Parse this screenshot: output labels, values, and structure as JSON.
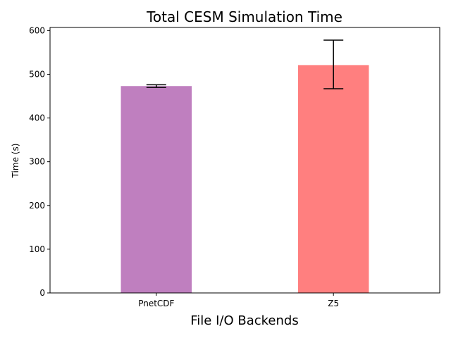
{
  "chart_data": {
    "type": "bar",
    "title": "Total CESM Simulation Time",
    "xlabel": "File I/O Backends",
    "ylabel": "Time (s)",
    "categories": [
      "PnetCDF",
      "Z5"
    ],
    "values": [
      473,
      521
    ],
    "error_low": [
      470,
      467
    ],
    "error_high": [
      476,
      578
    ],
    "colors": [
      "#bf7fbf",
      "#ff7f7f"
    ],
    "ylim": [
      0,
      607
    ],
    "yticks": [
      0,
      100,
      200,
      300,
      400,
      500,
      600
    ],
    "grid": false,
    "legend": "none"
  }
}
